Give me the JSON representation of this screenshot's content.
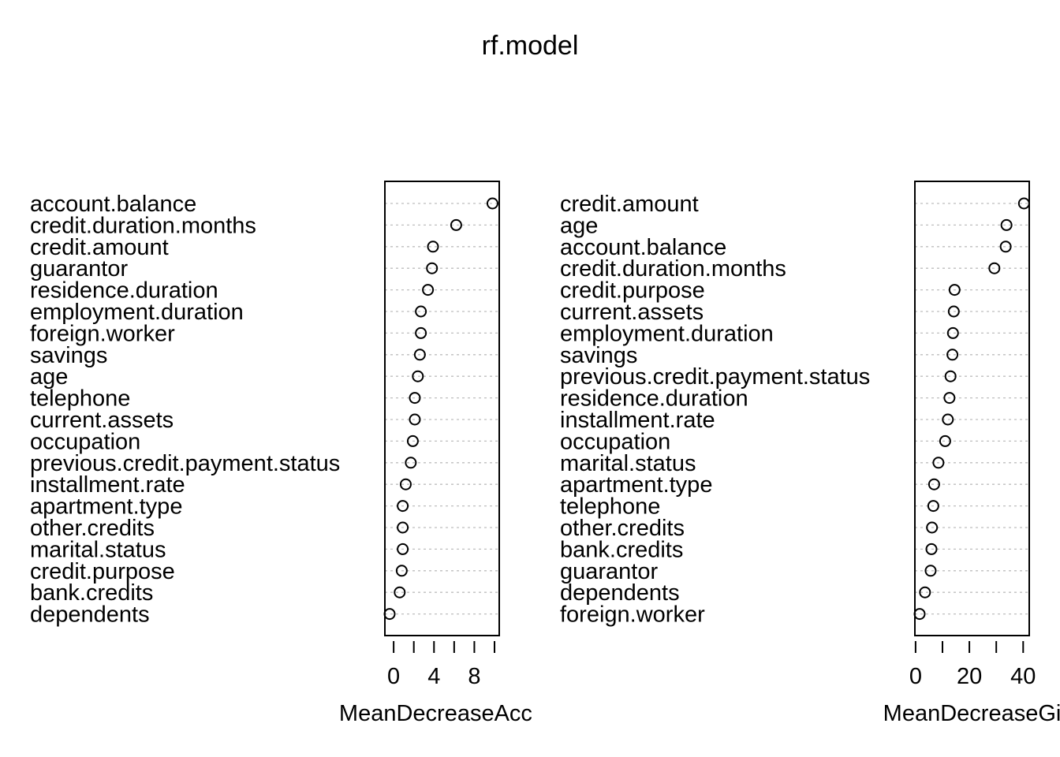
{
  "title": "rf.model",
  "chart_data": [
    {
      "type": "scatter",
      "subtype": "dotchart",
      "xlabel": "MeanDecreaseAccuracy",
      "xlabel_visible": "MeanDecreaseAccu",
      "xlim": [
        -0.4,
        10.0
      ],
      "xticks": [
        0,
        2,
        4,
        6,
        8,
        10
      ],
      "xtick_labels": [
        "0",
        "4",
        "8"
      ],
      "grid": "dotted-horizontal",
      "categories": [
        "account.balance",
        "credit.duration.months",
        "credit.amount",
        "guarantor",
        "residence.duration",
        "employment.duration",
        "foreign.worker",
        "savings",
        "age",
        "telephone",
        "current.assets",
        "occupation",
        "previous.credit.payment.status",
        "installment.rate",
        "apartment.type",
        "other.credits",
        "marital.status",
        "credit.purpose",
        "bank.credits",
        "dependents"
      ],
      "values": [
        9.8,
        6.2,
        3.9,
        3.8,
        3.4,
        2.7,
        2.7,
        2.6,
        2.4,
        2.1,
        2.1,
        1.9,
        1.7,
        1.2,
        0.9,
        0.9,
        0.9,
        0.8,
        0.6,
        -0.4
      ]
    },
    {
      "type": "scatter",
      "subtype": "dotchart",
      "xlabel": "MeanDecreaseGini",
      "xlabel_visible": "MeanDecreaseGi",
      "xlim": [
        1.5,
        40.5
      ],
      "xticks": [
        0,
        10,
        20,
        30,
        40
      ],
      "xtick_labels": [
        "0",
        "20",
        "40"
      ],
      "grid": "dotted-horizontal",
      "categories": [
        "credit.amount",
        "age",
        "account.balance",
        "credit.duration.months",
        "credit.purpose",
        "current.assets",
        "employment.duration",
        "savings",
        "previous.credit.payment.status",
        "residence.duration",
        "installment.rate",
        "occupation",
        "marital.status",
        "apartment.type",
        "telephone",
        "other.credits",
        "bank.credits",
        "guarantor",
        "dependents",
        "foreign.worker"
      ],
      "values": [
        40.3,
        33.8,
        33.5,
        29.3,
        14.5,
        14.2,
        13.9,
        13.7,
        13.0,
        12.6,
        12.0,
        11.0,
        8.5,
        6.9,
        6.6,
        6.1,
        5.9,
        5.6,
        3.5,
        1.5
      ]
    }
  ]
}
